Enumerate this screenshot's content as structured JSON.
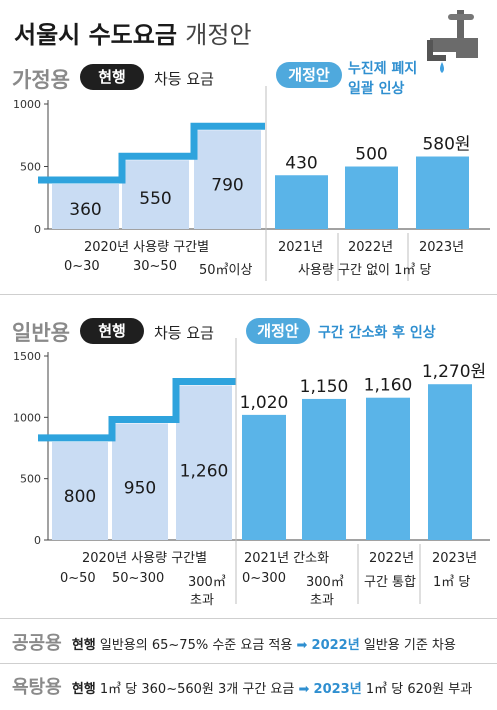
{
  "title_main": "서울시 수도요금",
  "title_sub": "개정안",
  "icon": "faucet-icon",
  "colors": {
    "current_bar": "#c9dcf3",
    "proposal_bar": "#5ab4e8",
    "step_line": "#2ea3dd",
    "label_blue": "#2f8fd0",
    "category_gray": "#8a8a8a"
  },
  "household": {
    "category": "가정용",
    "current_badge": "현행",
    "current_desc": "차등 요금",
    "proposal_badge": "개정안",
    "proposal_desc_1": "누진제 폐지",
    "proposal_desc_2": "일괄 인상",
    "y_ticks": [
      "1000",
      "500",
      "0"
    ],
    "current_group_label": "2020년 사용량 구간별",
    "current_bar_labels": [
      "0~30",
      "30~50",
      "50㎥이상"
    ],
    "proposal_years": [
      "2021년",
      "2022년",
      "2023년"
    ],
    "proposal_note": "사용량 구간 없이 1㎥ 당"
  },
  "general": {
    "category": "일반용",
    "current_badge": "현행",
    "current_desc": "차등 요금",
    "proposal_badge": "개정안",
    "proposal_desc": "구간 간소화 후 인상",
    "y_ticks": [
      "1500",
      "1000",
      "500",
      "0"
    ],
    "current_group_label": "2020년 사용량 구간별",
    "current_bar_labels": [
      "0~50",
      "50~300",
      "300㎥",
      "초과"
    ],
    "proposal_2021_label": "2021년 간소화",
    "proposal_2021_bar_labels": [
      "0~300",
      "300㎥",
      "초과"
    ],
    "proposal_2022_year": "2022년",
    "proposal_2022_note": "구간 통합",
    "proposal_2023_year": "2023년",
    "proposal_2023_note": "1㎥ 당"
  },
  "public": {
    "category": "공공용",
    "current_badge": "현행",
    "current_text": "일반용의 65~75% 수준 요금 적용",
    "arrow": "➡",
    "year": "2022년",
    "after_text": "일반용 기준 차용"
  },
  "bath": {
    "category": "욕탕용",
    "current_badge": "현행",
    "current_text": "1㎥ 당 360~560원 3개 구간 요금",
    "arrow": "➡",
    "year": "2023년",
    "after_text": "1㎥ 당 620원 부과"
  },
  "chart_data": [
    {
      "type": "bar",
      "title": "가정용",
      "ylim": [
        0,
        1000
      ],
      "yticks": [
        0,
        500,
        1000
      ],
      "unit": "원",
      "series": [
        {
          "name": "현행",
          "categories": [
            "0~30",
            "30~50",
            "50㎥이상"
          ],
          "values": [
            360,
            550,
            790
          ],
          "value_labels": [
            "360",
            "550",
            "790"
          ]
        },
        {
          "name": "개정안",
          "categories": [
            "2021년",
            "2022년",
            "2023년"
          ],
          "values": [
            430,
            500,
            580
          ],
          "value_labels": [
            "430",
            "500",
            "580원"
          ]
        }
      ]
    },
    {
      "type": "bar",
      "title": "일반용",
      "ylim": [
        0,
        1500
      ],
      "yticks": [
        0,
        500,
        1000,
        1500
      ],
      "unit": "원",
      "series": [
        {
          "name": "현행",
          "categories": [
            "0~50",
            "50~300",
            "300㎥ 초과"
          ],
          "values": [
            800,
            950,
            1260
          ],
          "value_labels": [
            "800",
            "950",
            "1,260"
          ]
        },
        {
          "name": "개정안",
          "categories": [
            "2021년 0~300",
            "2021년 300㎥ 초과",
            "2022년",
            "2023년"
          ],
          "values": [
            1020,
            1150,
            1160,
            1270
          ],
          "value_labels": [
            "1,020",
            "1,150",
            "1,160",
            "1,270원"
          ]
        }
      ]
    }
  ]
}
